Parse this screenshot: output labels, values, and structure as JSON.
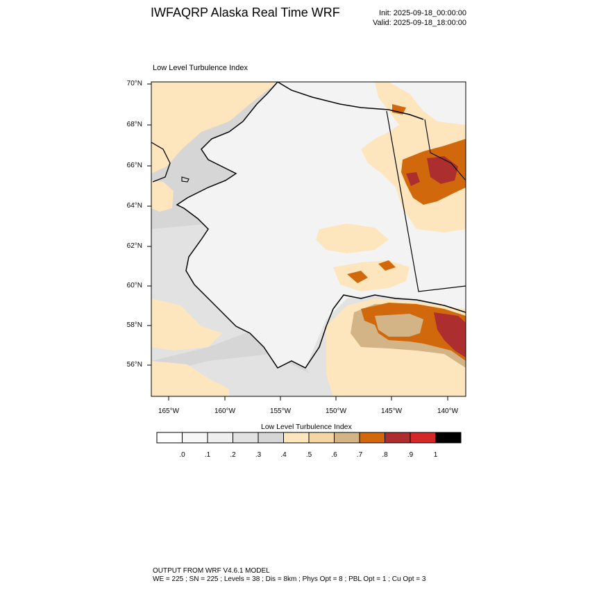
{
  "header": {
    "title": "IWFAQRP Alaska Real Time WRF",
    "init": "Init: 2025-09-18_00:00:00",
    "valid": "Valid: 2025-09-18_18:00:00"
  },
  "map": {
    "title": "Low Level Turbulence Index",
    "lat_labels": [
      "70°N",
      "68°N",
      "66°N",
      "64°N",
      "62°N",
      "60°N",
      "58°N",
      "56°N"
    ],
    "lon_labels": [
      "165°W",
      "160°W",
      "155°W",
      "150°W",
      "145°W",
      "140°W"
    ],
    "colors": {
      "ocean_dark": "#d6d6d6",
      "ocean_light": "#e2e2e2",
      "land": "#f3f3f3",
      "turb_low": "#fde6bd",
      "turb_mid": "#d2b486",
      "turb_high": "#d1690c",
      "turb_max": "#ad2e2e",
      "coast": "#000000"
    }
  },
  "colorbar": {
    "title": "Low Level Turbulence Index",
    "tick_labels": [
      ".0",
      ".1",
      ".2",
      ".3",
      ".4",
      ".5",
      ".6",
      ".7",
      ".8",
      ".9",
      "1"
    ],
    "colors": [
      "#ffffff",
      "#f7f7f7",
      "#efefef",
      "#e2e2e2",
      "#d6d6d6",
      "#fde6bd",
      "#f3d6a4",
      "#d2b486",
      "#d1690c",
      "#ad2e2e",
      "#d42727",
      "#000000"
    ]
  },
  "footer": {
    "line1": "OUTPUT FROM WRF V4.6.1 MODEL",
    "line2": "WE = 225 ; SN = 225 ; Levels = 38 ; Dis = 8km ; Phys Opt = 8 ; PBL Opt = 1 ; Cu Opt = 3"
  }
}
